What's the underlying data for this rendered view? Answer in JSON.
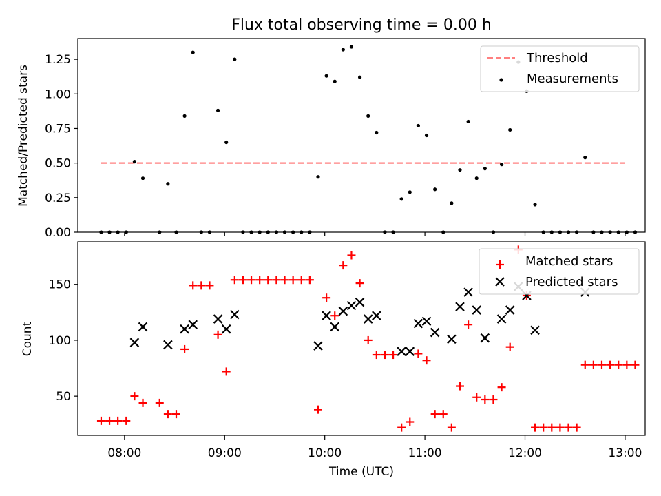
{
  "figure": {
    "title": "Flux total observing time = 0.00 h",
    "xlabel": "Time (UTC)"
  },
  "chart_data": [
    {
      "type": "scatter",
      "panel": "top",
      "title": "Flux total observing time = 0.00 h",
      "ylabel": "Matched/Predicted stars",
      "xlabel": "",
      "xlim": [
        "07:32",
        "13:12"
      ],
      "ylim": [
        0,
        1.4
      ],
      "yticks": [
        0.0,
        0.25,
        0.5,
        0.75,
        1.0,
        1.25
      ],
      "ytick_labels": [
        "0.00",
        "0.25",
        "0.50",
        "0.75",
        "1.00",
        "1.25"
      ],
      "legend": {
        "placement": "top-right",
        "entries": [
          "Threshold",
          "Measurements"
        ]
      },
      "threshold": {
        "name": "Threshold",
        "value": 0.5,
        "x_range": [
          "07:46",
          "13:00"
        ],
        "color": "#ff8080",
        "style": "dashed"
      },
      "series": [
        {
          "name": "Measurements",
          "color": "#000000",
          "marker": "dot",
          "points": [
            [
              "07:46",
              0.0
            ],
            [
              "07:51",
              0.0
            ],
            [
              "07:56",
              0.0
            ],
            [
              "08:01",
              0.0
            ],
            [
              "08:06",
              0.51
            ],
            [
              "08:11",
              0.39
            ],
            [
              "08:21",
              0.0
            ],
            [
              "08:26",
              0.35
            ],
            [
              "08:31",
              0.0
            ],
            [
              "08:36",
              0.84
            ],
            [
              "08:41",
              1.3
            ],
            [
              "08:46",
              0.0
            ],
            [
              "08:51",
              0.0
            ],
            [
              "08:56",
              0.88
            ],
            [
              "09:01",
              0.65
            ],
            [
              "09:06",
              1.25
            ],
            [
              "09:11",
              0.0
            ],
            [
              "09:16",
              0.0
            ],
            [
              "09:21",
              0.0
            ],
            [
              "09:26",
              0.0
            ],
            [
              "09:31",
              0.0
            ],
            [
              "09:36",
              0.0
            ],
            [
              "09:41",
              0.0
            ],
            [
              "09:46",
              0.0
            ],
            [
              "09:51",
              0.0
            ],
            [
              "09:56",
              0.4
            ],
            [
              "10:01",
              1.13
            ],
            [
              "10:06",
              1.09
            ],
            [
              "10:11",
              1.32
            ],
            [
              "10:16",
              1.34
            ],
            [
              "10:21",
              1.12
            ],
            [
              "10:26",
              0.84
            ],
            [
              "10:31",
              0.72
            ],
            [
              "10:36",
              0.0
            ],
            [
              "10:41",
              0.0
            ],
            [
              "10:46",
              0.24
            ],
            [
              "10:51",
              0.29
            ],
            [
              "10:56",
              0.77
            ],
            [
              "11:01",
              0.7
            ],
            [
              "11:06",
              0.31
            ],
            [
              "11:11",
              0.0
            ],
            [
              "11:16",
              0.21
            ],
            [
              "11:21",
              0.45
            ],
            [
              "11:26",
              0.8
            ],
            [
              "11:31",
              0.39
            ],
            [
              "11:36",
              0.46
            ],
            [
              "11:41",
              0.0
            ],
            [
              "11:46",
              0.49
            ],
            [
              "11:51",
              0.74
            ],
            [
              "11:56",
              1.23
            ],
            [
              "12:01",
              1.02
            ],
            [
              "12:06",
              0.2
            ],
            [
              "12:11",
              0.0
            ],
            [
              "12:16",
              0.0
            ],
            [
              "12:21",
              0.0
            ],
            [
              "12:26",
              0.0
            ],
            [
              "12:31",
              0.0
            ],
            [
              "12:36",
              0.54
            ],
            [
              "12:41",
              0.0
            ],
            [
              "12:46",
              0.0
            ],
            [
              "12:51",
              0.0
            ],
            [
              "12:56",
              0.0
            ],
            [
              "13:01",
              0.0
            ],
            [
              "13:06",
              0.0
            ]
          ]
        }
      ],
      "xticks": [
        "08:00",
        "09:00",
        "10:00",
        "11:00",
        "12:00",
        "13:00"
      ],
      "grid": false
    },
    {
      "type": "scatter",
      "panel": "bottom",
      "title": "",
      "ylabel": "Count",
      "xlabel": "Time (UTC)",
      "xlim": [
        "07:32",
        "13:12"
      ],
      "ylim": [
        15,
        188
      ],
      "yticks": [
        50,
        100,
        150
      ],
      "ytick_labels": [
        "50",
        "100",
        "150"
      ],
      "legend": {
        "placement": "top-right",
        "entries": [
          "Matched stars",
          "Predicted stars"
        ]
      },
      "series": [
        {
          "name": "Matched stars",
          "color": "#ff0000",
          "marker": "plus",
          "points": [
            [
              "07:46",
              28
            ],
            [
              "07:51",
              28
            ],
            [
              "07:56",
              28
            ],
            [
              "08:01",
              28
            ],
            [
              "08:06",
              50
            ],
            [
              "08:11",
              44
            ],
            [
              "08:21",
              44
            ],
            [
              "08:26",
              34
            ],
            [
              "08:31",
              34
            ],
            [
              "08:36",
              92
            ],
            [
              "08:41",
              149
            ],
            [
              "08:46",
              149
            ],
            [
              "08:51",
              149
            ],
            [
              "08:56",
              105
            ],
            [
              "09:01",
              72
            ],
            [
              "09:06",
              154
            ],
            [
              "09:11",
              154
            ],
            [
              "09:16",
              154
            ],
            [
              "09:21",
              154
            ],
            [
              "09:26",
              154
            ],
            [
              "09:31",
              154
            ],
            [
              "09:36",
              154
            ],
            [
              "09:41",
              154
            ],
            [
              "09:46",
              154
            ],
            [
              "09:51",
              154
            ],
            [
              "09:56",
              38
            ],
            [
              "10:01",
              138
            ],
            [
              "10:06",
              122
            ],
            [
              "10:11",
              167
            ],
            [
              "10:16",
              176
            ],
            [
              "10:21",
              151
            ],
            [
              "10:26",
              100
            ],
            [
              "10:31",
              87
            ],
            [
              "10:36",
              87
            ],
            [
              "10:41",
              87
            ],
            [
              "10:46",
              22
            ],
            [
              "10:51",
              27
            ],
            [
              "10:56",
              88
            ],
            [
              "11:01",
              82
            ],
            [
              "11:06",
              34
            ],
            [
              "11:11",
              34
            ],
            [
              "11:16",
              22
            ],
            [
              "11:21",
              59
            ],
            [
              "11:26",
              114
            ],
            [
              "11:31",
              49
            ],
            [
              "11:36",
              47
            ],
            [
              "11:41",
              47
            ],
            [
              "11:46",
              58
            ],
            [
              "11:51",
              94
            ],
            [
              "11:56",
              181
            ],
            [
              "12:01",
              140
            ],
            [
              "12:06",
              22
            ],
            [
              "12:11",
              22
            ],
            [
              "12:16",
              22
            ],
            [
              "12:21",
              22
            ],
            [
              "12:26",
              22
            ],
            [
              "12:31",
              22
            ],
            [
              "12:36",
              78
            ],
            [
              "12:41",
              78
            ],
            [
              "12:46",
              78
            ],
            [
              "12:51",
              78
            ],
            [
              "12:56",
              78
            ],
            [
              "13:01",
              78
            ],
            [
              "13:06",
              78
            ]
          ]
        },
        {
          "name": "Predicted stars",
          "color": "#000000",
          "marker": "x",
          "points": [
            [
              "08:06",
              98
            ],
            [
              "08:11",
              112
            ],
            [
              "08:26",
              96
            ],
            [
              "08:36",
              110
            ],
            [
              "08:41",
              114
            ],
            [
              "08:56",
              119
            ],
            [
              "09:01",
              110
            ],
            [
              "09:06",
              123
            ],
            [
              "09:56",
              95
            ],
            [
              "10:01",
              122
            ],
            [
              "10:06",
              112
            ],
            [
              "10:11",
              126
            ],
            [
              "10:16",
              131
            ],
            [
              "10:21",
              134
            ],
            [
              "10:26",
              119
            ],
            [
              "10:31",
              122
            ],
            [
              "10:46",
              90
            ],
            [
              "10:51",
              90
            ],
            [
              "10:56",
              115
            ],
            [
              "11:01",
              117
            ],
            [
              "11:06",
              107
            ],
            [
              "11:16",
              101
            ],
            [
              "11:21",
              130
            ],
            [
              "11:26",
              143
            ],
            [
              "11:31",
              127
            ],
            [
              "11:36",
              102
            ],
            [
              "11:46",
              119
            ],
            [
              "11:51",
              127
            ],
            [
              "11:56",
              148
            ],
            [
              "12:01",
              140
            ],
            [
              "12:06",
              109
            ],
            [
              "12:36",
              143
            ]
          ]
        }
      ],
      "xticks": [
        "08:00",
        "09:00",
        "10:00",
        "11:00",
        "12:00",
        "13:00"
      ],
      "xtick_labels": [
        "08:00",
        "09:00",
        "10:00",
        "11:00",
        "12:00",
        "13:00"
      ],
      "grid": false
    }
  ]
}
